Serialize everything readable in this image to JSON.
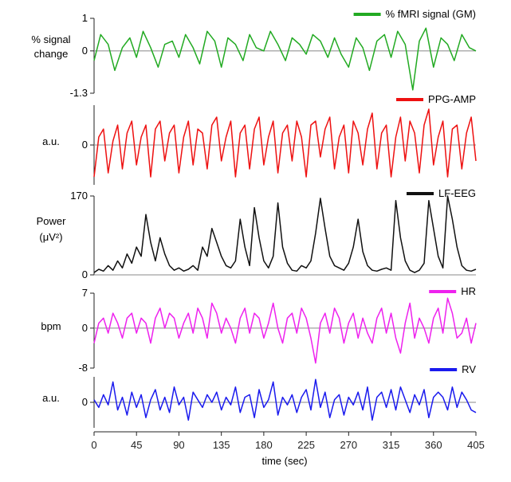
{
  "chart_data": {
    "type": "line",
    "x_axis": {
      "label": "time (sec)",
      "ticks": [
        0,
        45,
        90,
        135,
        180,
        225,
        270,
        315,
        360,
        405
      ],
      "xlim": [
        0,
        405
      ]
    },
    "panels": [
      {
        "id": "gm",
        "legend": "% fMRI signal (GM)",
        "color": "#22aa22",
        "ylabel": [
          "% signal",
          "change"
        ],
        "ylim": [
          -1.3,
          1
        ],
        "yticks": [
          {
            "value": 1,
            "label": "1"
          },
          {
            "value": 0,
            "label": "0"
          },
          {
            "value": -1.3,
            "label": "-1.3"
          }
        ],
        "x": [
          0,
          7,
          15,
          22,
          30,
          38,
          45,
          52,
          60,
          68,
          75,
          83,
          90,
          97,
          105,
          112,
          120,
          128,
          135,
          142,
          150,
          158,
          165,
          172,
          180,
          187,
          195,
          203,
          210,
          218,
          225,
          232,
          240,
          248,
          255,
          262,
          270,
          278,
          285,
          292,
          300,
          308,
          315,
          322,
          330,
          338,
          345,
          352,
          360,
          368,
          375,
          382,
          390,
          398,
          405
        ],
        "values": [
          -0.3,
          0.5,
          0.2,
          -0.6,
          0.1,
          0.4,
          -0.2,
          0.6,
          0.1,
          -0.5,
          0.2,
          0.3,
          -0.2,
          0.5,
          0.1,
          -0.4,
          0.6,
          0.3,
          -0.5,
          0.4,
          0.2,
          -0.3,
          0.5,
          0.1,
          0.0,
          0.6,
          0.2,
          -0.3,
          0.4,
          0.2,
          -0.1,
          0.5,
          0.3,
          -0.2,
          0.4,
          -0.1,
          -0.5,
          0.4,
          0.1,
          -0.6,
          0.3,
          0.5,
          -0.2,
          0.6,
          0.2,
          -1.2,
          0.3,
          0.7,
          -0.5,
          0.4,
          0.2,
          -0.3,
          0.5,
          0.1,
          0.0
        ]
      },
      {
        "id": "ppg",
        "legend": "PPG-AMP",
        "color": "#ee1111",
        "ylabel": [
          "a.u."
        ],
        "ylim": [
          -1,
          1
        ],
        "yticks": [
          {
            "value": 0,
            "label": "0"
          }
        ],
        "x": [
          0,
          5,
          10,
          15,
          20,
          25,
          30,
          35,
          40,
          45,
          50,
          55,
          60,
          65,
          70,
          75,
          80,
          85,
          90,
          95,
          100,
          105,
          110,
          115,
          120,
          125,
          130,
          135,
          140,
          145,
          150,
          155,
          160,
          165,
          170,
          175,
          180,
          185,
          190,
          195,
          200,
          205,
          210,
          215,
          220,
          225,
          230,
          235,
          240,
          245,
          250,
          255,
          260,
          265,
          270,
          275,
          280,
          285,
          290,
          295,
          300,
          305,
          310,
          315,
          320,
          325,
          330,
          335,
          340,
          345,
          350,
          355,
          360,
          365,
          370,
          375,
          380,
          385,
          390,
          395,
          400,
          405
        ],
        "values": [
          -0.8,
          0.2,
          0.4,
          -0.7,
          0.1,
          0.5,
          -0.6,
          0.3,
          0.6,
          -0.5,
          0.2,
          0.5,
          -0.8,
          0.4,
          0.6,
          -0.4,
          0.3,
          0.5,
          -0.7,
          0.2,
          0.6,
          -0.5,
          0.4,
          0.3,
          -0.6,
          0.5,
          0.7,
          -0.4,
          0.2,
          0.6,
          -0.8,
          0.3,
          0.5,
          -0.6,
          0.4,
          0.7,
          -0.5,
          0.2,
          0.6,
          -0.7,
          0.3,
          0.5,
          -0.4,
          0.6,
          0.2,
          -0.8,
          0.5,
          0.6,
          -0.3,
          0.4,
          0.7,
          -0.6,
          0.2,
          0.5,
          -0.7,
          0.6,
          0.3,
          -0.5,
          0.4,
          0.8,
          -0.6,
          0.3,
          0.5,
          -0.8,
          0.2,
          0.7,
          -0.4,
          0.6,
          0.3,
          -0.7,
          0.5,
          0.9,
          -0.5,
          0.2,
          0.6,
          -0.8,
          0.4,
          0.5,
          -0.6,
          0.3,
          0.7,
          -0.4
        ]
      },
      {
        "id": "eeg",
        "legend": "LF-EEG",
        "color": "#111111",
        "ylabel": [
          "Power",
          "(μV²)"
        ],
        "ylim": [
          0,
          170
        ],
        "yticks": [
          {
            "value": 170,
            "label": "170"
          },
          {
            "value": 0,
            "label": "0"
          }
        ],
        "x": [
          0,
          5,
          10,
          15,
          20,
          25,
          30,
          35,
          40,
          45,
          50,
          55,
          60,
          65,
          70,
          75,
          80,
          85,
          90,
          95,
          100,
          105,
          110,
          115,
          120,
          125,
          130,
          135,
          140,
          145,
          150,
          155,
          160,
          165,
          170,
          175,
          180,
          185,
          190,
          195,
          200,
          205,
          210,
          215,
          220,
          225,
          230,
          235,
          240,
          245,
          250,
          255,
          260,
          265,
          270,
          275,
          280,
          285,
          290,
          295,
          300,
          305,
          310,
          315,
          320,
          325,
          330,
          335,
          340,
          345,
          350,
          355,
          360,
          365,
          370,
          375,
          380,
          385,
          390,
          395,
          400,
          405
        ],
        "values": [
          5,
          12,
          8,
          20,
          10,
          30,
          15,
          45,
          25,
          60,
          40,
          130,
          70,
          30,
          80,
          45,
          20,
          10,
          15,
          8,
          12,
          20,
          10,
          60,
          40,
          100,
          70,
          40,
          20,
          15,
          30,
          120,
          60,
          20,
          145,
          80,
          30,
          15,
          40,
          155,
          60,
          25,
          10,
          8,
          20,
          15,
          30,
          90,
          165,
          100,
          40,
          20,
          15,
          10,
          25,
          60,
          120,
          50,
          20,
          10,
          8,
          12,
          15,
          10,
          160,
          80,
          30,
          10,
          5,
          10,
          25,
          160,
          100,
          40,
          15,
          170,
          120,
          60,
          20,
          10,
          8,
          12
        ]
      },
      {
        "id": "hr",
        "legend": "HR",
        "color": "#ee22ee",
        "ylabel": [
          "bpm"
        ],
        "ylim": [
          -8,
          7
        ],
        "yticks": [
          {
            "value": 7,
            "label": "7"
          },
          {
            "value": 0,
            "label": "0"
          },
          {
            "value": -8,
            "label": "-8"
          }
        ],
        "x": [
          0,
          5,
          10,
          15,
          20,
          25,
          30,
          35,
          40,
          45,
          50,
          55,
          60,
          65,
          70,
          75,
          80,
          85,
          90,
          95,
          100,
          105,
          110,
          115,
          120,
          125,
          130,
          135,
          140,
          145,
          150,
          155,
          160,
          165,
          170,
          175,
          180,
          185,
          190,
          195,
          200,
          205,
          210,
          215,
          220,
          225,
          230,
          235,
          240,
          245,
          250,
          255,
          260,
          265,
          270,
          275,
          280,
          285,
          290,
          295,
          300,
          305,
          310,
          315,
          320,
          325,
          330,
          335,
          340,
          345,
          350,
          355,
          360,
          365,
          370,
          375,
          380,
          385,
          390,
          395,
          400,
          405
        ],
        "values": [
          -3,
          1,
          2,
          -1,
          3,
          1,
          -2,
          2,
          3,
          -1,
          2,
          1,
          -3,
          2,
          4,
          0,
          3,
          2,
          -2,
          1,
          3,
          -1,
          4,
          2,
          -2,
          5,
          3,
          -1,
          2,
          0,
          -3,
          2,
          4,
          -1,
          3,
          2,
          -2,
          1,
          5,
          0,
          -3,
          2,
          3,
          -1,
          4,
          2,
          -2,
          -7,
          1,
          3,
          -1,
          4,
          2,
          -3,
          1,
          3,
          -2,
          2,
          -1,
          -3,
          2,
          4,
          -1,
          3,
          -2,
          -5,
          1,
          5,
          -2,
          2,
          0,
          -3,
          2,
          4,
          -1,
          6,
          3,
          -2,
          -1,
          2,
          -3,
          1
        ]
      },
      {
        "id": "rv",
        "legend": "RV",
        "color": "#1a1aee",
        "ylabel": [
          "a.u."
        ],
        "ylim": [
          -1,
          1
        ],
        "yticks": [
          {
            "value": 0,
            "label": "0"
          }
        ],
        "x": [
          0,
          5,
          10,
          15,
          20,
          25,
          30,
          35,
          40,
          45,
          50,
          55,
          60,
          65,
          70,
          75,
          80,
          85,
          90,
          95,
          100,
          105,
          110,
          115,
          120,
          125,
          130,
          135,
          140,
          145,
          150,
          155,
          160,
          165,
          170,
          175,
          180,
          185,
          190,
          195,
          200,
          205,
          210,
          215,
          220,
          225,
          230,
          235,
          240,
          245,
          250,
          255,
          260,
          265,
          270,
          275,
          280,
          285,
          290,
          295,
          300,
          305,
          310,
          315,
          320,
          325,
          330,
          335,
          340,
          345,
          350,
          355,
          360,
          365,
          370,
          375,
          380,
          385,
          390,
          395,
          400,
          405
        ],
        "values": [
          0.1,
          -0.2,
          0.3,
          -0.1,
          0.8,
          -0.3,
          0.2,
          -0.5,
          0.4,
          -0.2,
          0.3,
          -0.6,
          0.1,
          0.5,
          -0.3,
          0.2,
          -0.4,
          0.6,
          -0.1,
          0.2,
          -0.7,
          0.4,
          0.1,
          -0.2,
          0.3,
          0.0,
          0.4,
          -0.3,
          0.2,
          -0.1,
          0.6,
          -0.4,
          0.2,
          0.3,
          -0.6,
          0.5,
          -0.2,
          0.1,
          0.8,
          -0.5,
          0.2,
          -0.1,
          0.3,
          -0.4,
          0.2,
          0.5,
          -0.3,
          0.9,
          -0.2,
          0.4,
          -0.6,
          0.1,
          0.3,
          -0.5,
          0.2,
          -0.1,
          0.4,
          -0.3,
          0.6,
          -0.7,
          0.2,
          0.4,
          -0.2,
          0.5,
          -0.3,
          0.6,
          0.1,
          -0.4,
          0.3,
          -0.1,
          0.5,
          -0.6,
          0.2,
          0.4,
          0.2,
          -0.3,
          0.6,
          -0.2,
          0.4,
          0.1,
          -0.3,
          -0.4
        ]
      }
    ]
  }
}
